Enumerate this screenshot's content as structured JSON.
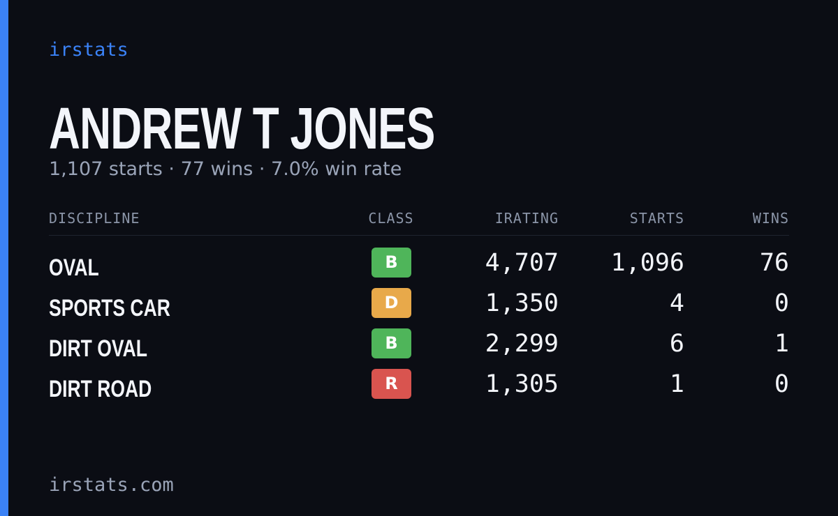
{
  "brand": "irstats",
  "driver": {
    "name": "ANDREW T JONES",
    "summary": "1,107 starts · 77 wins · 7.0% win rate"
  },
  "table": {
    "headers": [
      "DISCIPLINE",
      "CLASS",
      "IRATING",
      "STARTS",
      "WINS"
    ],
    "rows": [
      {
        "discipline": "OVAL",
        "class": "B",
        "class_color": "#4fb55a",
        "irating": "4,707",
        "starts": "1,096",
        "wins": "76"
      },
      {
        "discipline": "SPORTS CAR",
        "class": "D",
        "class_color": "#e8a94a",
        "irating": "1,350",
        "starts": "4",
        "wins": "0"
      },
      {
        "discipline": "DIRT OVAL",
        "class": "B",
        "class_color": "#4fb55a",
        "irating": "2,299",
        "starts": "6",
        "wins": "1"
      },
      {
        "discipline": "DIRT ROAD",
        "class": "R",
        "class_color": "#d9544f",
        "irating": "1,305",
        "starts": "1",
        "wins": "0"
      }
    ]
  },
  "footer": "irstats.com"
}
